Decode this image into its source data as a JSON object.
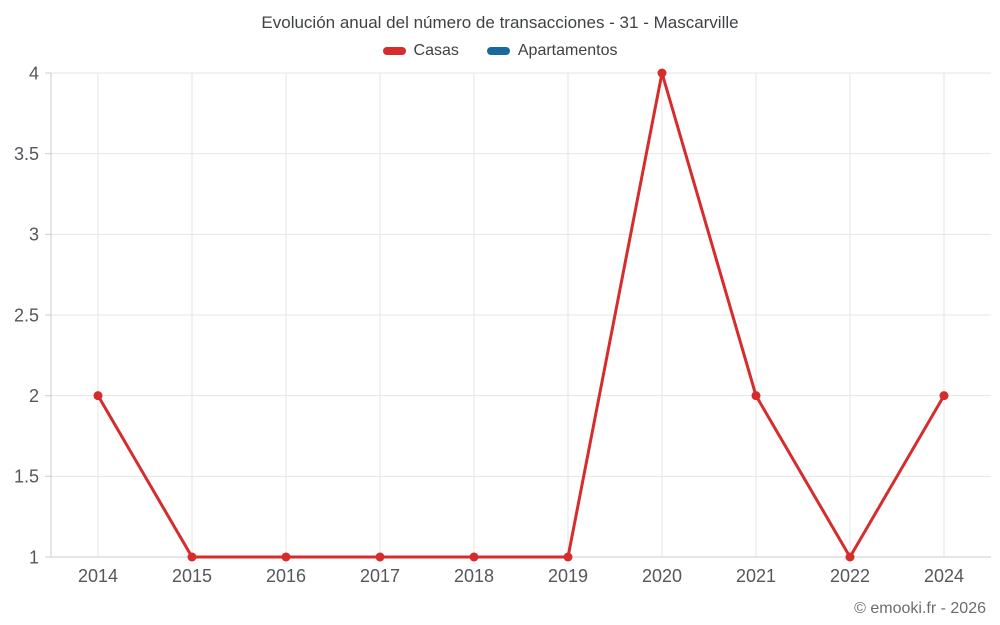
{
  "attribution": {
    "text": "© emooki.fr - 2026"
  },
  "colors": {
    "background": "#ffffff",
    "gridline": "#e6e6e6",
    "axis_line": "#cccccc",
    "tick_label": "#54575b",
    "title_text": "#3f4245",
    "attribution_text": "#6a6d70",
    "casas_red": "#d62c2c",
    "apartamentos_blue": "#17699f"
  },
  "chart_data": {
    "type": "line",
    "title": "Evolución anual del número de transacciones - 31 - Mascarville",
    "xlabel": "",
    "ylabel": "",
    "categories": [
      "2014",
      "2015",
      "2016",
      "2017",
      "2018",
      "2019",
      "2020",
      "2021",
      "2022",
      "2024"
    ],
    "series": [
      {
        "name": "Casas",
        "color": "#d62c2c",
        "values": [
          2,
          1,
          1,
          1,
          1,
          1,
          4,
          2,
          1,
          2
        ]
      },
      {
        "name": "Apartamentos",
        "color": "#17699f",
        "values": []
      }
    ],
    "ylim": [
      1,
      4
    ],
    "yticks": [
      1,
      1.5,
      2,
      2.5,
      3,
      3.5,
      4
    ],
    "grid": true,
    "legend_position": "top",
    "marker_radius": 4.5,
    "line_width": 3
  }
}
